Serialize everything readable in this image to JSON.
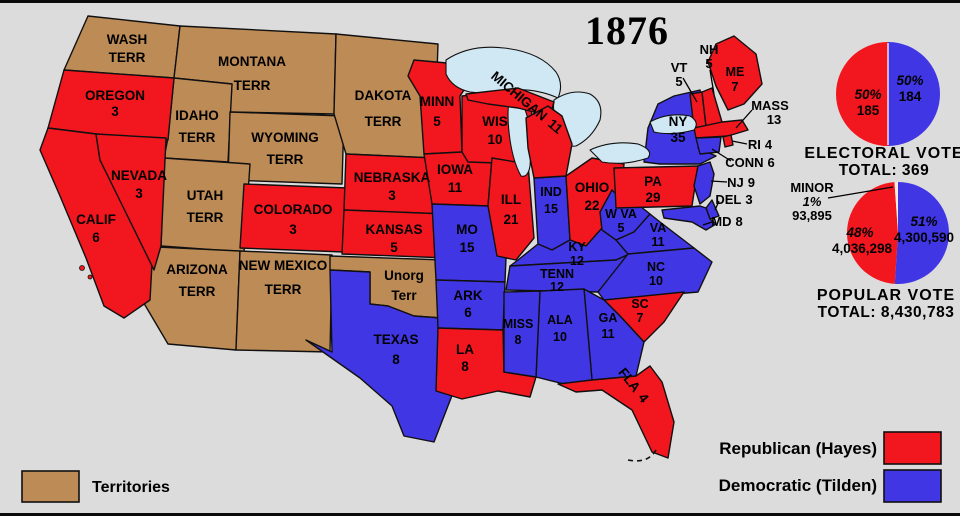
{
  "title": "1876",
  "colors": {
    "republican": "#f2161e",
    "democratic": "#4136e4",
    "territory": "#bd8b55",
    "water": "#cfe8f4",
    "background": "#dcdcdc",
    "minor": "#f0ede4"
  },
  "legend": {
    "territories": "Territories",
    "republican": "Republican (Hayes)",
    "democratic": "Democratic (Tilden)"
  },
  "electoral_vote": {
    "heading": "ELECTORAL VOTE",
    "total": "TOTAL: 369",
    "republican": {
      "pct": "50%",
      "value": "185",
      "share": 50.14
    },
    "democratic": {
      "pct": "50%",
      "value": "184",
      "share": 49.86
    }
  },
  "popular_vote": {
    "heading": "POPULAR VOTE",
    "total": "TOTAL: 8,430,783",
    "republican": {
      "pct": "48%",
      "value": "4,036,298",
      "share": 47.9
    },
    "democratic": {
      "pct": "51%",
      "value": "4,300,590",
      "share": 51.0
    },
    "minor": {
      "label": "MINOR",
      "pct": "1%",
      "value": "93,895",
      "share": 1.1
    }
  },
  "states": {
    "oregon": {
      "name": "OREGON",
      "votes": "3",
      "party": "republican"
    },
    "calif": {
      "name": "CALIF",
      "votes": "6",
      "party": "republican"
    },
    "nevada": {
      "name": "NEVADA",
      "votes": "3",
      "party": "republican"
    },
    "colorado": {
      "name": "COLORADO",
      "votes": "3",
      "party": "republican"
    },
    "nebraska": {
      "name": "NEBRASKA",
      "votes": "3",
      "party": "republican"
    },
    "kansas": {
      "name": "KANSAS",
      "votes": "5",
      "party": "republican"
    },
    "texas": {
      "name": "TEXAS",
      "votes": "8",
      "party": "democratic"
    },
    "minn": {
      "name": "MINN",
      "votes": "5",
      "party": "republican"
    },
    "iowa": {
      "name": "IOWA",
      "votes": "11",
      "party": "republican"
    },
    "missouri": {
      "name": "MO",
      "votes": "15",
      "party": "democratic"
    },
    "ark": {
      "name": "ARK",
      "votes": "6",
      "party": "democratic"
    },
    "louisiana": {
      "name": "LA",
      "votes": "8",
      "party": "republican"
    },
    "wis": {
      "name": "WIS",
      "votes": "10",
      "party": "republican"
    },
    "illinois": {
      "name": "ILL",
      "votes": "21",
      "party": "republican"
    },
    "michigan": {
      "name": "MICHIGAN",
      "votes": "11",
      "party": "republican"
    },
    "indiana": {
      "name": "IND",
      "votes": "15",
      "party": "democratic"
    },
    "ohio": {
      "name": "OHIO",
      "votes": "22",
      "party": "republican"
    },
    "kentucky": {
      "name": "KY",
      "votes": "12",
      "party": "democratic"
    },
    "tennessee": {
      "name": "TENN",
      "votes": "12",
      "party": "democratic"
    },
    "wv": {
      "name": "W VA",
      "votes": "5",
      "party": "democratic"
    },
    "va": {
      "name": "VA",
      "votes": "11",
      "party": "democratic"
    },
    "nc": {
      "name": "NC",
      "votes": "10",
      "party": "democratic"
    },
    "sc": {
      "name": "SC",
      "votes": "7",
      "party": "republican"
    },
    "georgia": {
      "name": "GA",
      "votes": "11",
      "party": "democratic"
    },
    "alabama": {
      "name": "ALA",
      "votes": "10",
      "party": "democratic"
    },
    "miss": {
      "name": "MISS",
      "votes": "8",
      "party": "democratic"
    },
    "florida": {
      "name": "FLA",
      "votes": "4",
      "party": "republican"
    },
    "pa": {
      "name": "PA",
      "votes": "29",
      "party": "republican"
    },
    "ny": {
      "name": "NY",
      "votes": "35",
      "party": "democratic"
    },
    "nj": {
      "name": "NJ",
      "votes": "9",
      "party": "democratic"
    },
    "del": {
      "name": "DEL",
      "votes": "3",
      "party": "democratic"
    },
    "md": {
      "name": "MD",
      "votes": "8",
      "party": "democratic"
    },
    "conn": {
      "name": "CONN",
      "votes": "6",
      "party": "democratic"
    },
    "ri": {
      "name": "RI",
      "votes": "4",
      "party": "republican"
    },
    "mass": {
      "name": "MASS",
      "votes": "13",
      "party": "republican"
    },
    "vt": {
      "name": "VT",
      "votes": "5",
      "party": "republican"
    },
    "nh": {
      "name": "NH",
      "votes": "5",
      "party": "republican"
    },
    "maine": {
      "name": "ME",
      "votes": "7",
      "party": "republican"
    }
  },
  "territories": {
    "wash": {
      "line1": "WASH",
      "line2": "TERR"
    },
    "montana": {
      "line1": "MONTANA",
      "line2": "TERR"
    },
    "idaho": {
      "line1": "IDAHO",
      "line2": "TERR"
    },
    "wyoming": {
      "line1": "WYOMING",
      "line2": "TERR"
    },
    "dakota": {
      "line1": "DAKOTA",
      "line2": "TERR"
    },
    "utah": {
      "line1": "UTAH",
      "line2": "TERR"
    },
    "arizona": {
      "line1": "ARIZONA",
      "line2": "TERR"
    },
    "new_mexico": {
      "line1": "NEW MEXICO",
      "line2": "TERR"
    },
    "unorg": {
      "line1": "Unorg",
      "line2": "Terr"
    }
  }
}
